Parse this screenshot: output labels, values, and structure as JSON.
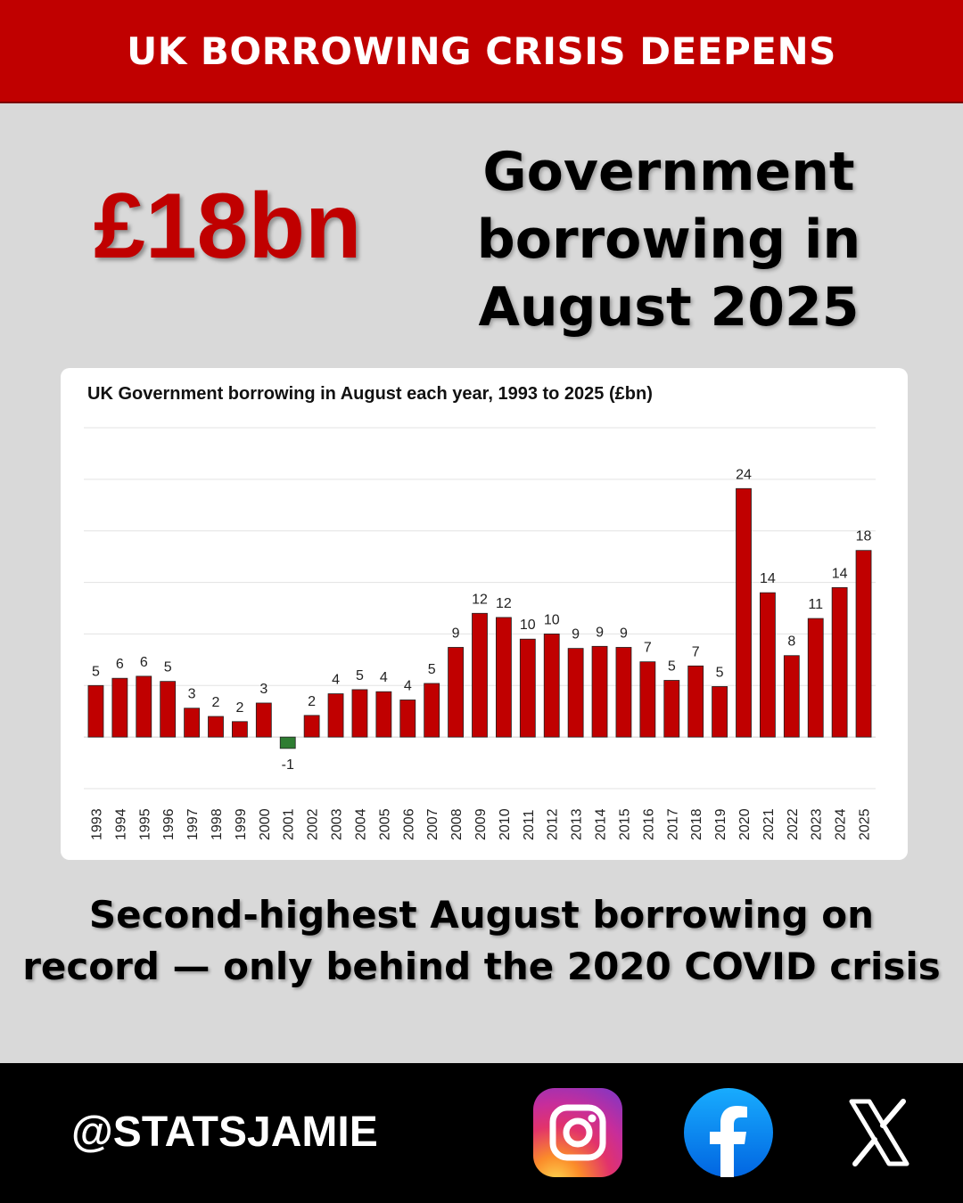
{
  "banner": {
    "title": "UK BORROWING CRISIS DEEPENS"
  },
  "headline": {
    "big_number": "£18bn",
    "lines": [
      "Government",
      "borrowing in",
      "August 2025"
    ]
  },
  "chart_data": {
    "type": "bar",
    "title": "UK Government borrowing in August each year, 1993 to 2025 (£bn)",
    "categories": [
      "1993",
      "1994",
      "1995",
      "1996",
      "1997",
      "1998",
      "1999",
      "2000",
      "2001",
      "2002",
      "2003",
      "2004",
      "2005",
      "2006",
      "2007",
      "2008",
      "2009",
      "2010",
      "2011",
      "2012",
      "2013",
      "2014",
      "2015",
      "2016",
      "2017",
      "2018",
      "2019",
      "2020",
      "2021",
      "2022",
      "2023",
      "2024",
      "2025"
    ],
    "values": [
      5,
      6,
      6,
      5,
      3,
      2,
      2,
      3,
      -1,
      2,
      4,
      5,
      4,
      4,
      5,
      9,
      12,
      12,
      10,
      10,
      9,
      9,
      9,
      7,
      5,
      7,
      5,
      24,
      14,
      8,
      11,
      14,
      18
    ],
    "display_values": [
      5.0,
      5.7,
      5.9,
      5.4,
      2.8,
      2.0,
      1.5,
      3.3,
      -1.1,
      2.1,
      4.2,
      4.6,
      4.4,
      3.6,
      5.2,
      8.7,
      12.0,
      11.6,
      9.5,
      10.0,
      8.6,
      8.8,
      8.7,
      7.3,
      5.5,
      6.9,
      4.9,
      24.1,
      14.0,
      7.9,
      11.5,
      14.5,
      18.1
    ],
    "ylim": [
      -5,
      30
    ],
    "gridlines": true,
    "colors": {
      "positive": "#c00000",
      "negative": "#2e7d32"
    }
  },
  "bottom_text": {
    "line1": "Second-highest August borrowing on",
    "line2": "record — only behind the 2020 COVID crisis"
  },
  "footer": {
    "handle": "@STATSJAMIE",
    "icons": [
      "instagram-icon",
      "facebook-icon",
      "x-icon"
    ]
  }
}
